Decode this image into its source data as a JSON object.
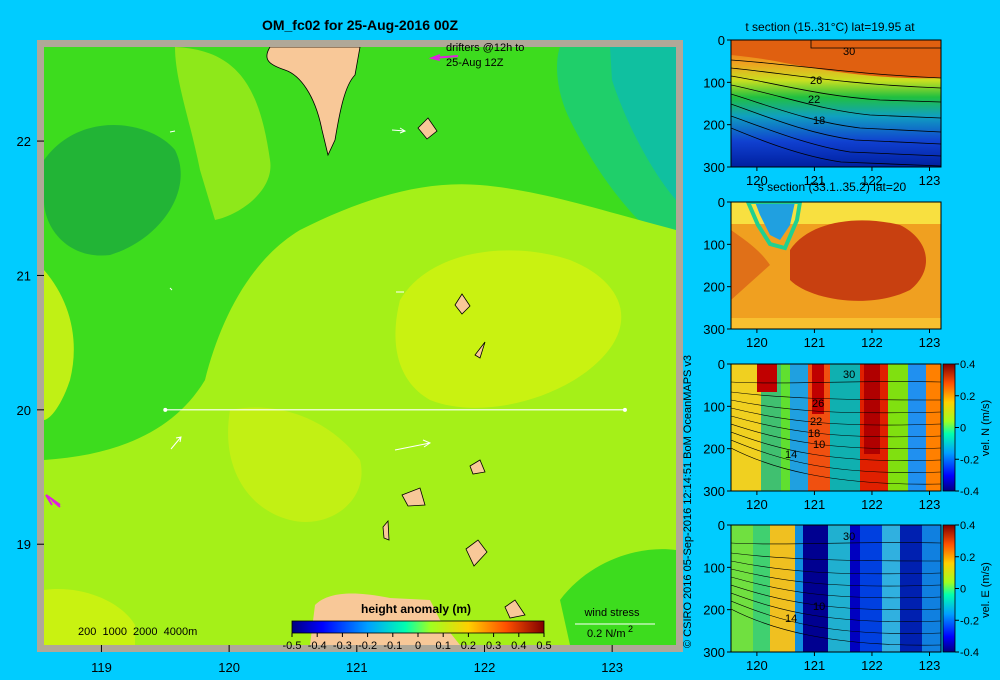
{
  "colors": {
    "background": "#00ccff",
    "land": "#f8c898",
    "frame": "#b0a898"
  },
  "chart_data": [
    {
      "type": "heatmap",
      "title": "OM_fc02 for 25-Aug-2016 00Z",
      "x_ticks": [
        "119",
        "120",
        "121",
        "122",
        "123"
      ],
      "x_tick_values": [
        119,
        120,
        121,
        122,
        123
      ],
      "y_ticks": [
        "19",
        "20",
        "21",
        "22"
      ],
      "y_tick_values": [
        19,
        20,
        21,
        22
      ],
      "xlim": [
        118.55,
        123.5
      ],
      "ylim": [
        18.25,
        22.7
      ],
      "drifters_label": [
        "drifters @12h to",
        "25-Aug 12Z"
      ],
      "depth_contours_label": "200  1000  2000  4000m",
      "colorbar": {
        "title": "height anomaly (m)",
        "ticks": [
          "-0.5",
          "-0.4",
          "-0.3",
          "-0.2",
          "-0.1",
          "0",
          "0.1",
          "0.2",
          "0.3",
          "0.4",
          "0.5"
        ],
        "range": [
          -0.5,
          0.5
        ]
      },
      "wind_stress": {
        "title": "wind stress",
        "scale": "0.2 N/m",
        "unit_power": "2"
      },
      "section_line": {
        "lon": [
          119.5,
          123.1
        ],
        "lat": 20
      }
    },
    {
      "type": "heatmap",
      "title": "t section (15..31°C) lat=19.95 at",
      "x_ticks": [
        "120",
        "121",
        "122",
        "123"
      ],
      "x_tick_values": [
        120,
        121,
        122,
        123
      ],
      "y_ticks": [
        "0",
        "100",
        "200",
        "300"
      ],
      "y_tick_values": [
        0,
        100,
        200,
        300
      ],
      "xlim": [
        119.55,
        123.2
      ],
      "ylim": [
        300,
        0
      ],
      "contour_labels": [
        "30",
        "26",
        "22",
        "18"
      ]
    },
    {
      "type": "heatmap",
      "title": "s section (33.1..35.2) lat=20",
      "x_ticks": [
        "120",
        "121",
        "122",
        "123"
      ],
      "x_tick_values": [
        120,
        121,
        122,
        123
      ],
      "y_ticks": [
        "0",
        "100",
        "200",
        "300"
      ],
      "y_tick_values": [
        0,
        100,
        200,
        300
      ],
      "xlim": [
        119.55,
        123.2
      ],
      "ylim": [
        300,
        0
      ]
    },
    {
      "type": "heatmap",
      "title": "",
      "x_ticks": [
        "120",
        "121",
        "122",
        "123"
      ],
      "x_tick_values": [
        120,
        121,
        122,
        123
      ],
      "y_ticks": [
        "0",
        "100",
        "200",
        "300"
      ],
      "y_tick_values": [
        0,
        100,
        200,
        300
      ],
      "xlim": [
        119.55,
        123.2
      ],
      "ylim": [
        300,
        0
      ],
      "contour_labels": [
        "30",
        "26",
        "22",
        "18",
        "14",
        "10"
      ],
      "colorbar": {
        "label": "vel. N (m/s)",
        "ticks": [
          "0.4",
          "0.2",
          "0",
          "-0.2",
          "-0.4"
        ],
        "range": [
          -0.4,
          0.4
        ]
      }
    },
    {
      "type": "heatmap",
      "title": "",
      "x_ticks": [
        "120",
        "121",
        "122",
        "123"
      ],
      "x_tick_values": [
        120,
        121,
        122,
        123
      ],
      "y_ticks": [
        "0",
        "100",
        "200",
        "300"
      ],
      "y_tick_values": [
        0,
        100,
        200,
        300
      ],
      "xlim": [
        119.55,
        123.2
      ],
      "ylim": [
        300,
        0
      ],
      "contour_labels": [
        "30",
        "14",
        "10"
      ],
      "colorbar": {
        "label": "vel. E (m/s)",
        "ticks": [
          "0.4",
          "0.2",
          "0",
          "-0.2",
          "-0.4"
        ],
        "range": [
          -0.4,
          0.4
        ]
      }
    }
  ],
  "credit": "© CSIRO 2016   05-Sep-2016 12:14:51 BoM OceanMAPS v3"
}
